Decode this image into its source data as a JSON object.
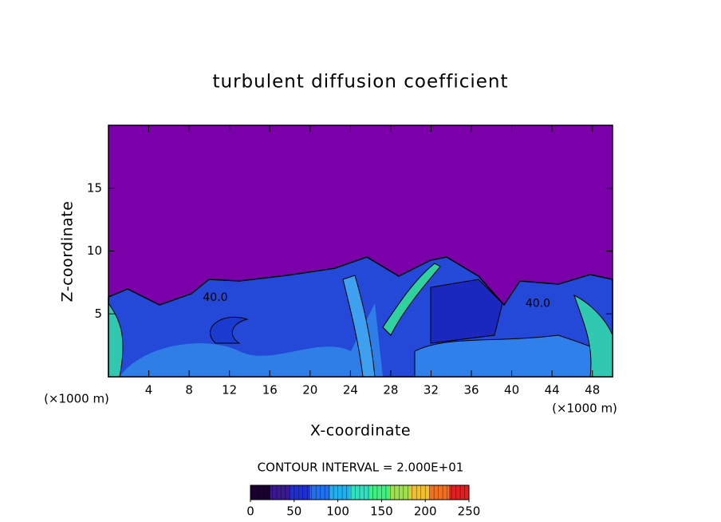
{
  "chart_data": {
    "type": "contour",
    "title": "turbulent diffusion coefficient",
    "xlabel": "X-coordinate",
    "ylabel": "Z-coordinate",
    "x_unit": "(×1000 m)",
    "y_unit": "(×1000 m)",
    "xlim": [
      0,
      50
    ],
    "ylim": [
      0,
      20
    ],
    "xticks": [
      4,
      8,
      12,
      16,
      20,
      24,
      28,
      32,
      36,
      40,
      44,
      48
    ],
    "yticks": [
      5,
      10,
      15
    ],
    "contour_interval": "CONTOUR INTERVAL = 2.000E+01",
    "annotations": [
      {
        "text": "40.0",
        "x": 10.6,
        "y": 6.3
      },
      {
        "text": "40.0",
        "x": 42.6,
        "y": 5.8
      }
    ],
    "clim": [
      0,
      250
    ],
    "cticks": [
      0,
      50,
      100,
      150,
      200,
      250
    ],
    "colormap": [
      "#1a0030",
      "#3a1890",
      "#2030d0",
      "#2070f0",
      "#20b0f0",
      "#30e0c0",
      "#40f080",
      "#a0e050",
      "#f0c030",
      "#f07020",
      "#e02020"
    ]
  }
}
